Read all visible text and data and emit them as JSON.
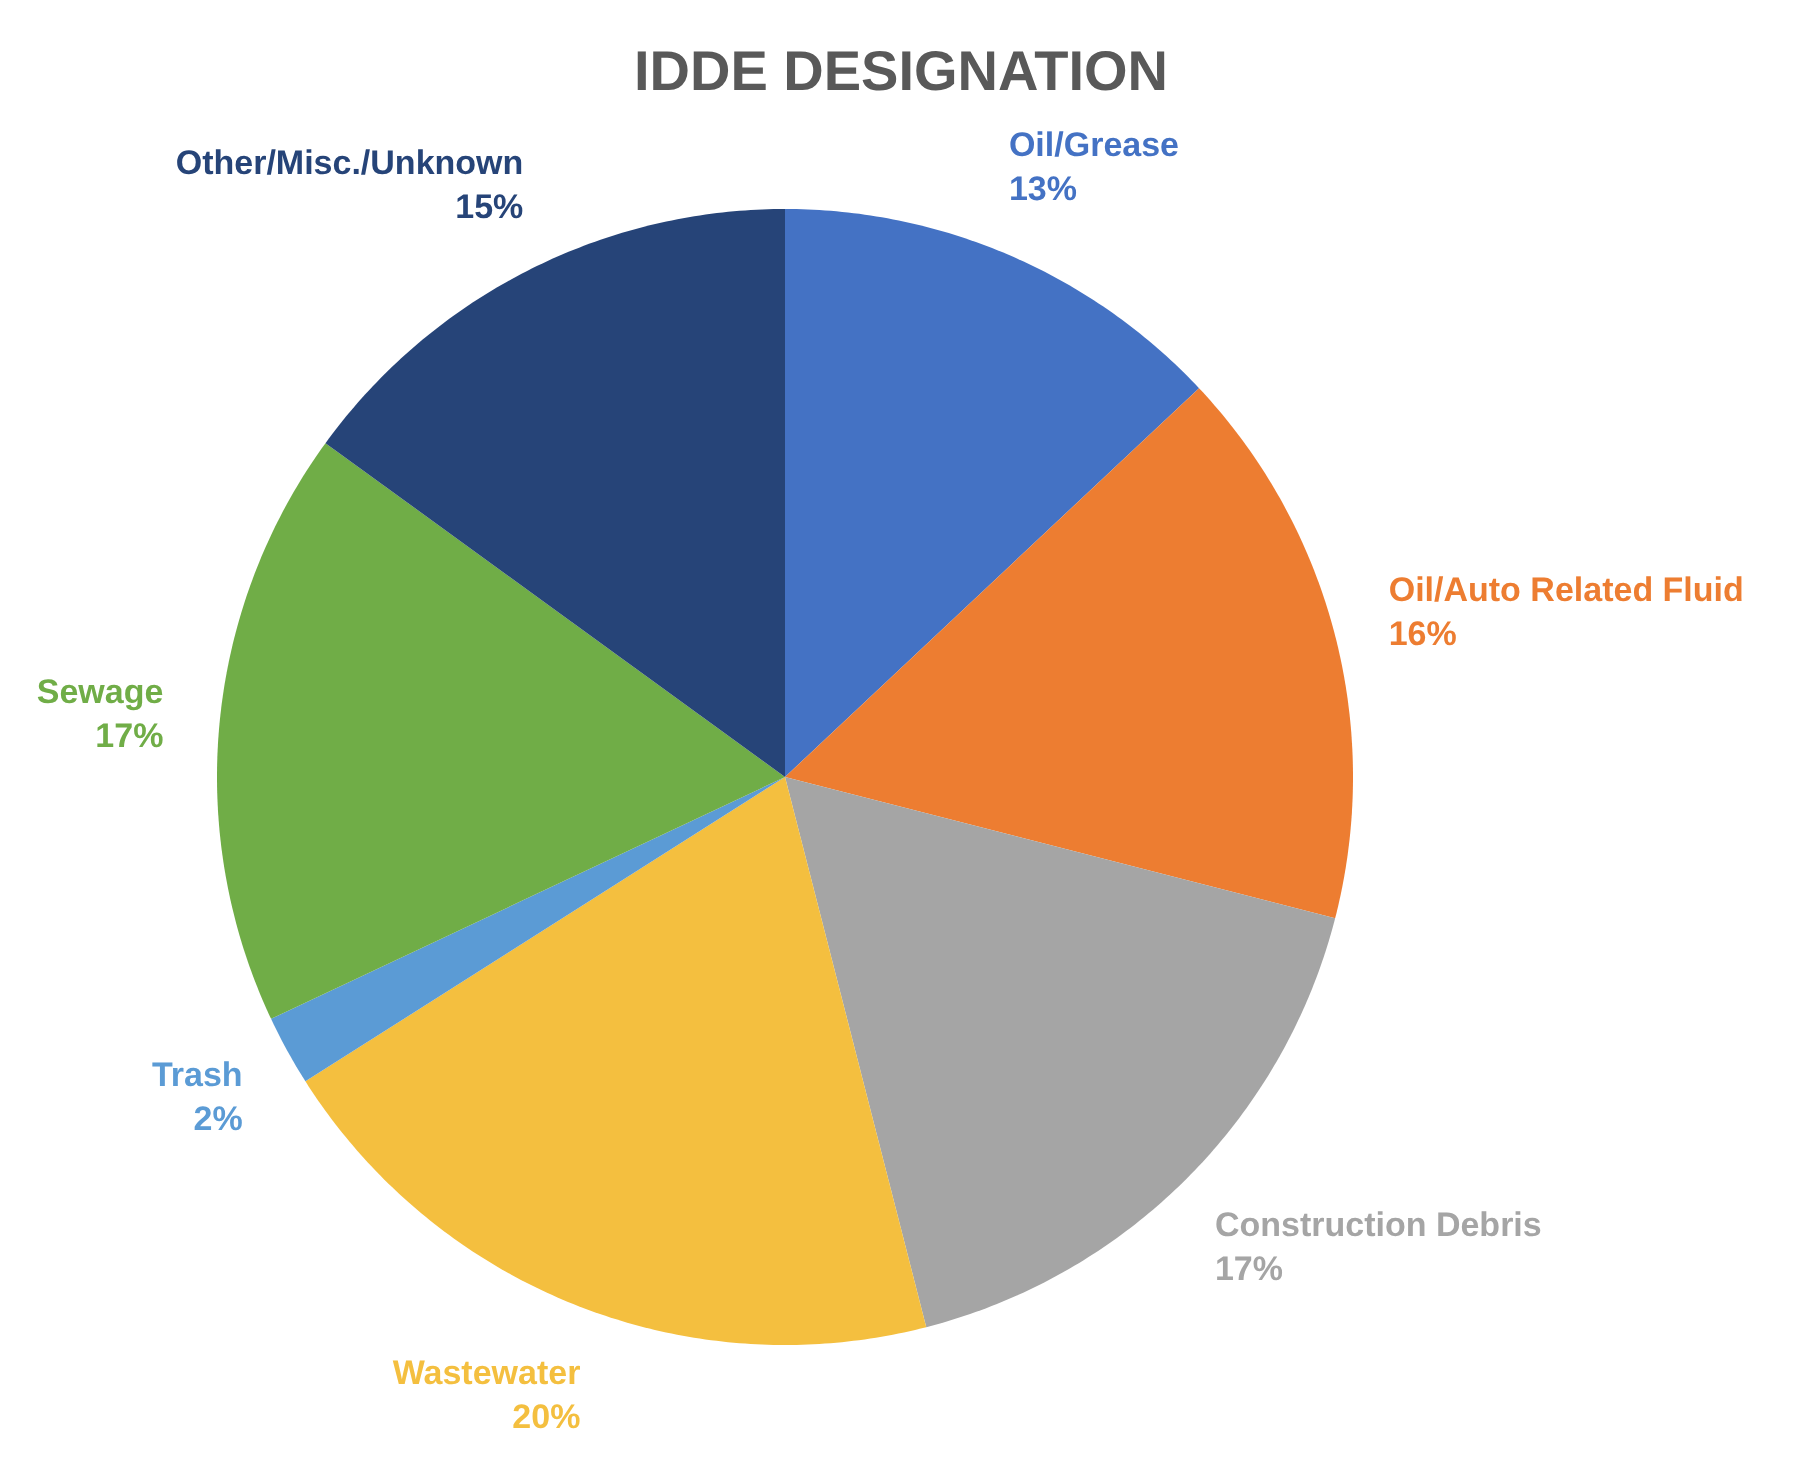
{
  "chart_data": {
    "type": "pie",
    "title": "IDDE DESIGNATION",
    "categories": [
      "Oil/Grease",
      "Oil/Auto Related Fluid",
      "Construction Debris",
      "Wastewater",
      "Trash",
      "Sewage",
      "Other/Misc./Unknown"
    ],
    "values": [
      13,
      16,
      17,
      20,
      2,
      17,
      15
    ],
    "value_labels": [
      "13%",
      "16%",
      "17%",
      "20%",
      "2%",
      "17%",
      "15%"
    ],
    "colors": [
      "#4472c4",
      "#ed7d31",
      "#a5a5a5",
      "#f4bf3f",
      "#5b9bd5",
      "#70ad47",
      "#264478"
    ]
  }
}
